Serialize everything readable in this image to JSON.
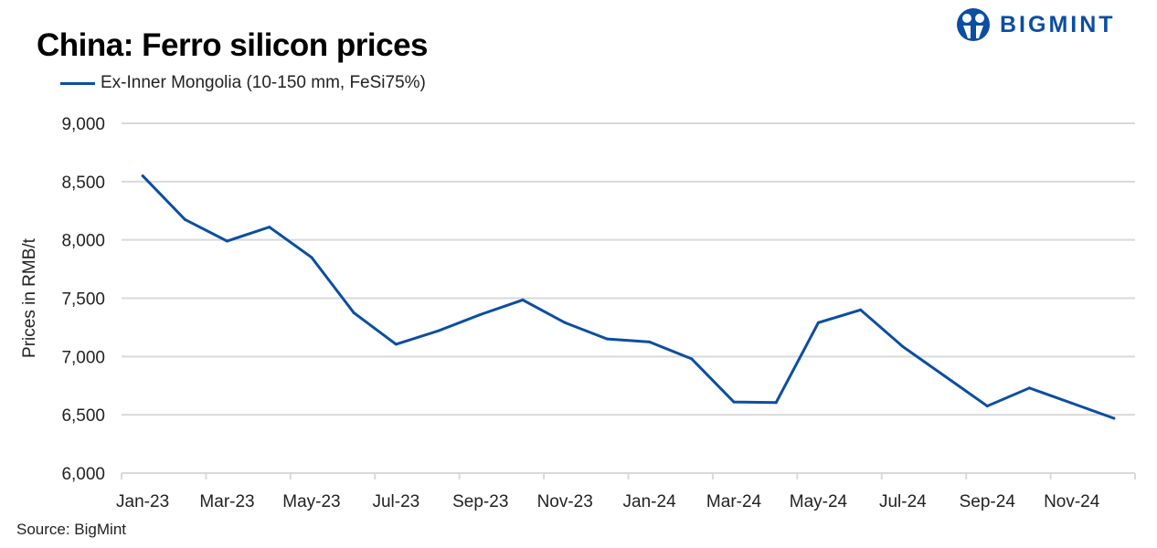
{
  "logo": {
    "text": "BIGMINT"
  },
  "source": "Source: BigMint",
  "chart_data": {
    "type": "line",
    "title": "China: Ferro silicon prices",
    "xlabel": "",
    "ylabel": "Prices in RMB/t",
    "ylim": [
      6000,
      9000
    ],
    "yticks": [
      6000,
      6500,
      7000,
      7500,
      8000,
      8500,
      9000
    ],
    "ytick_labels": [
      "6,000",
      "6,500",
      "7,000",
      "7,500",
      "8,000",
      "8,500",
      "9,000"
    ],
    "categories": [
      "Jan-23",
      "Feb-23",
      "Mar-23",
      "Apr-23",
      "May-23",
      "Jun-23",
      "Jul-23",
      "Aug-23",
      "Sep-23",
      "Oct-23",
      "Nov-23",
      "Dec-23",
      "Jan-24",
      "Feb-24",
      "Mar-24",
      "Apr-24",
      "May-24",
      "Jun-24",
      "Jul-24",
      "Aug-24",
      "Sep-24",
      "Oct-24",
      "Nov-24",
      "Dec-24"
    ],
    "xtick_labels": [
      "Jan-23",
      "Mar-23",
      "May-23",
      "Jul-23",
      "Sep-23",
      "Nov-23",
      "Jan-24",
      "Mar-24",
      "May-24",
      "Jul-24",
      "Sep-24",
      "Nov-24"
    ],
    "grid": true,
    "legend_position": "top-left",
    "series": [
      {
        "name": "Ex-Inner Mongolia (10-150 mm, FeSi75%)",
        "color": "#0b4ea2",
        "values": [
          8550,
          8175,
          7990,
          8110,
          7850,
          7375,
          7105,
          7220,
          7360,
          7485,
          7290,
          7150,
          7125,
          6980,
          6610,
          6605,
          7290,
          7400,
          7085,
          6830,
          6575,
          6730,
          6600,
          6470
        ]
      }
    ]
  }
}
